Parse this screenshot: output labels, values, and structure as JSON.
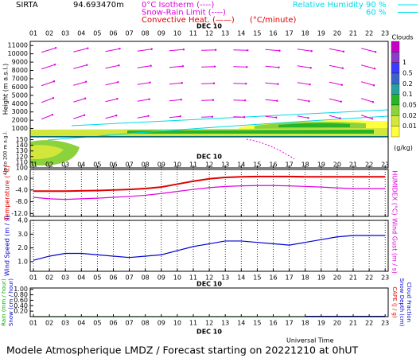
{
  "header": {
    "station": "SIRTA",
    "altitude": "94.693470m",
    "legend": [
      {
        "text": "0°C Isotherm (----)",
        "color": "#e000e0"
      },
      {
        "text": "Snow-Rain Limit (----)",
        "color": "#e000e0"
      },
      {
        "text": "Convective Heat. (——)",
        "color": "#e00000"
      }
    ],
    "unit": "(°C/minute)",
    "rh_title": "Relative Humidity",
    "rh_levels": [
      "90 %",
      "60 %"
    ],
    "rh_color": "#00d8e8"
  },
  "footer": {
    "axis_label": "Universal Time",
    "caption": "Modele Atmospherique LMDZ / Forecast starting on 20221210 at 0hUT"
  },
  "chart_data": [
    {
      "type": "contour",
      "date": "DEC 10",
      "categories": [
        "01",
        "02",
        "03",
        "04",
        "05",
        "06",
        "07",
        "08",
        "09",
        "10",
        "11",
        "12",
        "13",
        "14",
        "15",
        "16",
        "17",
        "18",
        "19",
        "20",
        "21",
        "22",
        "23"
      ],
      "ylabel": "Height (m a.s.l.)",
      "ylim": [
        0,
        11500
      ],
      "yticks": [
        1000,
        2000,
        3000,
        4000,
        5000,
        6000,
        7000,
        8000,
        9000,
        10000,
        11000
      ],
      "y2label": "Up to 200 m a.g.l.",
      "y2lim": [
        100,
        155
      ],
      "y2ticks": [
        100,
        110,
        120,
        130,
        140,
        150
      ],
      "colorbar": {
        "title": "Clouds",
        "unit": "(g/kg)",
        "levels": [
          1,
          0.5,
          0.2,
          0.1,
          0.05,
          0.02,
          0.01
        ],
        "colors": [
          "#c800c8",
          "#8c3cc8",
          "#3c3cff",
          "#3c64c8",
          "#28a0a0",
          "#28b428",
          "#8cd23c",
          "#d2e63c",
          "#ffff3c"
        ]
      }
    },
    {
      "type": "line",
      "date": "DEC 10",
      "categories": [
        "01",
        "02",
        "03",
        "04",
        "05",
        "06",
        "07",
        "08",
        "09",
        "10",
        "11",
        "12",
        "13",
        "14",
        "15",
        "16",
        "17",
        "18",
        "19",
        "20",
        "21",
        "22",
        "23"
      ],
      "ylabel": "Temperature (°C)",
      "y2label": "HUMIDEX (°C)",
      "ylim": [
        -13,
        3
      ],
      "yticks": [
        {
          "value": -12,
          "label": "-12.0"
        },
        {
          "value": -8,
          "label": "-8.0"
        },
        {
          "value": -4,
          "label": "-4.0"
        },
        {
          "value": 0,
          "label": "0.0"
        }
      ],
      "series": [
        {
          "name": "Temperature",
          "color": "#e00000",
          "values": [
            -4.4,
            -4.4,
            -4.4,
            -4.3,
            -4.2,
            -4.0,
            -3.8,
            -3.5,
            -3.0,
            -2.0,
            -1.0,
            -0.2,
            0.3,
            0.5,
            0.6,
            0.6,
            0.6,
            0.5,
            0.5,
            0.5,
            0.5,
            0.5,
            0.5
          ]
        },
        {
          "name": "HUMIDEX",
          "color": "#e000e0",
          "values": [
            -6.5,
            -7.0,
            -7.2,
            -7.0,
            -6.8,
            -6.5,
            -6.2,
            -5.8,
            -5.2,
            -4.5,
            -3.8,
            -3.2,
            -2.8,
            -2.6,
            -2.5,
            -2.5,
            -2.6,
            -2.8,
            -3.0,
            -3.3,
            -3.5,
            -3.5,
            -3.5
          ]
        }
      ]
    },
    {
      "type": "line",
      "date": "DEC 10",
      "categories": [
        "01",
        "02",
        "03",
        "04",
        "05",
        "06",
        "07",
        "08",
        "09",
        "10",
        "11",
        "12",
        "13",
        "14",
        "15",
        "16",
        "17",
        "18",
        "19",
        "20",
        "21",
        "22",
        "23"
      ],
      "ylabel": "Wind Speed (m / s)",
      "y2label": "Wind Gust (m / s)",
      "ylim": [
        0.3,
        4.0
      ],
      "yticks": [
        {
          "value": 1,
          "label": "1.0"
        },
        {
          "value": 2,
          "label": "2.0"
        },
        {
          "value": 3,
          "label": "3.0"
        },
        {
          "value": 4,
          "label": "4.0"
        }
      ],
      "series": [
        {
          "name": "Wind Speed",
          "color": "#0000d0",
          "values": [
            1.1,
            1.4,
            1.6,
            1.6,
            1.5,
            1.4,
            1.3,
            1.4,
            1.5,
            1.8,
            2.1,
            2.3,
            2.5,
            2.5,
            2.4,
            2.3,
            2.2,
            2.4,
            2.6,
            2.8,
            2.9,
            2.9,
            2.9
          ]
        }
      ]
    },
    {
      "type": "line",
      "date": "DEC 10",
      "categories": [
        "01",
        "02",
        "03",
        "04",
        "05",
        "06",
        "07",
        "08",
        "09",
        "10",
        "11",
        "12",
        "13",
        "14",
        "15",
        "16",
        "17",
        "18",
        "19",
        "20",
        "21",
        "22",
        "23"
      ],
      "ylabels": [
        {
          "text": "Rain (mm / hour)",
          "color": "#00b000"
        },
        {
          "text": "Snow (cm / hour)",
          "color": "#0000d0"
        }
      ],
      "y2labels": [
        {
          "text": "CAPE (J / g)",
          "color": "#e00000"
        },
        {
          "text": "Snow Depth (cm)",
          "color": "#0000d0"
        },
        {
          "text": "Cloud Fraction",
          "color": "#0000d0"
        }
      ],
      "ylim": [
        0,
        1.05
      ],
      "yticks": [
        {
          "value": 0.2,
          "label": "0.20"
        },
        {
          "value": 0.4,
          "label": "0.40"
        },
        {
          "value": 0.6,
          "label": "0.60"
        },
        {
          "value": 0.8,
          "label": "0.80"
        },
        {
          "value": 1,
          "label": "1.00"
        }
      ],
      "series": [
        {
          "name": "Rain",
          "color": "#00b000",
          "values": [
            0,
            0,
            0,
            0,
            0,
            0,
            0,
            0,
            0,
            0,
            0,
            0,
            0,
            0,
            0,
            0,
            0,
            0,
            0,
            0,
            0,
            0,
            0
          ]
        },
        {
          "name": "Cloud Fraction",
          "color": "#0000d0",
          "values": [
            null,
            null,
            null,
            null,
            null,
            null,
            null,
            null,
            null,
            null,
            null,
            null,
            null,
            null,
            null,
            null,
            null,
            0.01,
            0.01,
            0.01,
            0.01,
            0.01,
            0.01
          ]
        }
      ]
    }
  ]
}
